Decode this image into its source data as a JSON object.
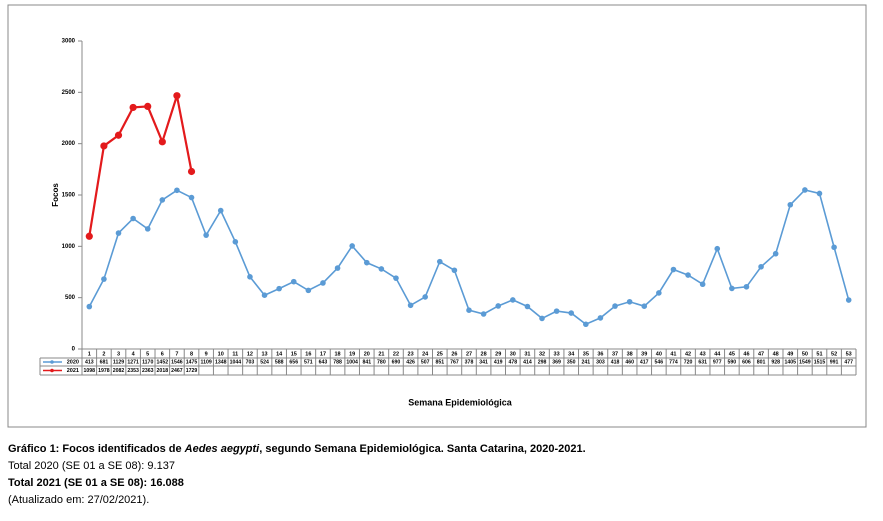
{
  "chart_data": {
    "type": "line",
    "x_label": "Semana Epidemiológica",
    "y_label": "Focos",
    "categories": [
      "1",
      "2",
      "3",
      "4",
      "5",
      "6",
      "7",
      "8",
      "9",
      "10",
      "11",
      "12",
      "13",
      "14",
      "15",
      "16",
      "17",
      "18",
      "19",
      "20",
      "21",
      "22",
      "23",
      "24",
      "25",
      "26",
      "27",
      "28",
      "29",
      "30",
      "31",
      "32",
      "33",
      "34",
      "35",
      "36",
      "37",
      "38",
      "39",
      "40",
      "41",
      "42",
      "43",
      "44",
      "45",
      "46",
      "47",
      "48",
      "49",
      "50",
      "51",
      "52",
      "53"
    ],
    "series": [
      {
        "name": "2020",
        "color": "#5b9bd5",
        "values": [
          413,
          681,
          1129,
          1271,
          1170,
          1452,
          1546,
          1475,
          1109,
          1348,
          1044,
          703,
          524,
          588,
          656,
          571,
          643,
          788,
          1004,
          841,
          780,
          690,
          426,
          507,
          851,
          767,
          378,
          341,
          419,
          478,
          414,
          298,
          369,
          350,
          241,
          303,
          418,
          460,
          417,
          546,
          774,
          720,
          631,
          977,
          590,
          606,
          801,
          928,
          1405,
          1549,
          1515,
          991,
          477
        ]
      },
      {
        "name": "2021",
        "color": "#e31a1c",
        "values": [
          1098,
          1978,
          2082,
          2353,
          2363,
          2018,
          2467,
          1729,
          null,
          null,
          null,
          null,
          null,
          null,
          null,
          null,
          null,
          null,
          null,
          null,
          null,
          null,
          null,
          null,
          null,
          null,
          null,
          null,
          null,
          null,
          null,
          null,
          null,
          null,
          null,
          null,
          null,
          null,
          null,
          null,
          null,
          null,
          null,
          null,
          null,
          null,
          null,
          null,
          null,
          null,
          null,
          null,
          null
        ]
      }
    ],
    "ylim": [
      0,
      3000
    ],
    "yticks": [
      0,
      500,
      1000,
      1500,
      2000,
      2500,
      3000
    ],
    "grid": false
  },
  "caption": {
    "prefix": "Gráfico 1: Focos identificados de ",
    "species": "Aedes aegypti",
    "suffix": ", segundo Semana Epidemiológica. Santa Catarina, 2020-2021.",
    "total_2020": "Total 2020 (SE 01 a SE 08): 9.137",
    "total_2021": "Total 2021 (SE 01 a SE 08): 16.088",
    "updated": "(Atualizado em: 27/02/2021)."
  }
}
